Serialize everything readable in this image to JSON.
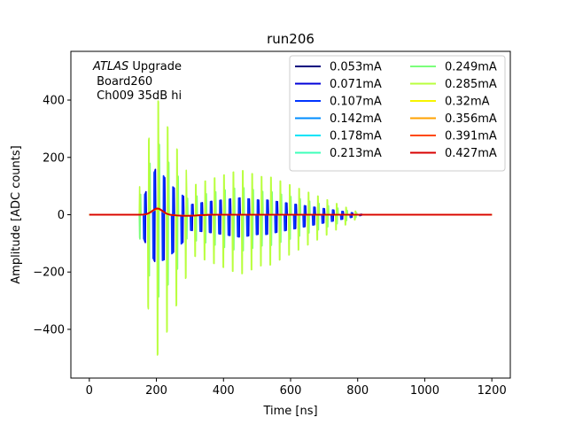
{
  "chart_data": {
    "type": "line",
    "title": "run206",
    "xlabel": "Time [ns]",
    "ylabel": "Amplitude [ADC counts]",
    "xlim": [
      -55,
      1255
    ],
    "ylim": [
      -570,
      570
    ],
    "xticks": [
      0,
      200,
      400,
      600,
      800,
      1000,
      1200
    ],
    "yticks": [
      -400,
      -200,
      0,
      200,
      400
    ],
    "annotation": {
      "italic": "ATLAS",
      "rest": " Upgrade",
      "line2": " Board260",
      "line3": " Ch009 35dB hi"
    },
    "legend_position": "upper-right",
    "series": [
      {
        "name": "0.053mA",
        "color": "#00007f",
        "osc_amp": 0,
        "pulse_amp": 20
      },
      {
        "name": "0.071mA",
        "color": "#0000d8",
        "osc_amp": 195,
        "pulse_amp": 20
      },
      {
        "name": "0.107mA",
        "color": "#0034ff",
        "osc_amp": 195,
        "pulse_amp": 20
      },
      {
        "name": "0.142mA",
        "color": "#008cff",
        "osc_amp": 0,
        "pulse_amp": 20
      },
      {
        "name": "0.178mA",
        "color": "#00e4f7",
        "osc_amp": 0,
        "pulse_amp": 20
      },
      {
        "name": "0.213mA",
        "color": "#3dffb9",
        "osc_amp": 0,
        "pulse_amp": 20
      },
      {
        "name": "0.249mA",
        "color": "#7bff7b",
        "osc_amp": 320,
        "pulse_amp": 20
      },
      {
        "name": "0.285mA",
        "color": "#b9ff3d",
        "osc_amp": 520,
        "pulse_amp": 20
      },
      {
        "name": "0.32mA",
        "color": "#f7f400",
        "osc_amp": 0,
        "pulse_amp": 20
      },
      {
        "name": "0.356mA",
        "color": "#ffa200",
        "osc_amp": 0,
        "pulse_amp": 20
      },
      {
        "name": "0.391mA",
        "color": "#ff4800",
        "osc_amp": 0,
        "pulse_amp": 21
      },
      {
        "name": "0.427mA",
        "color": "#d80000",
        "osc_amp": 0,
        "pulse_amp": 22
      }
    ]
  }
}
